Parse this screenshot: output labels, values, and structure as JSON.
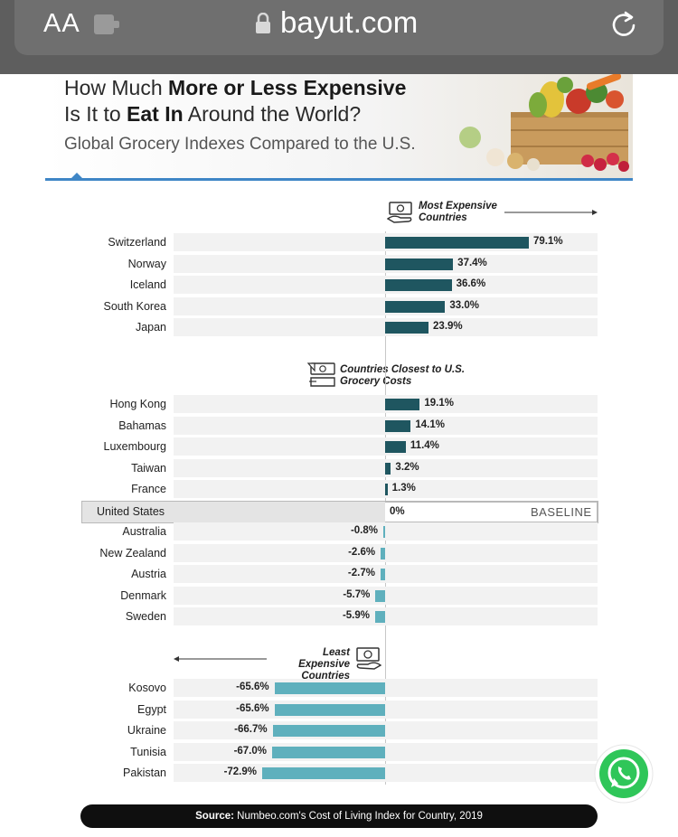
{
  "browser": {
    "text_size_button": "AA",
    "url": "bayut.com"
  },
  "header": {
    "title_line1_pre": "How Much ",
    "title_line1_bold": "More or Less Expensive",
    "title_line2_pre": "Is It to ",
    "title_line2_bold": "Eat In",
    "title_line2_post": " Around the World?",
    "subtitle": "Global Grocery Indexes Compared to the U.S."
  },
  "sections": {
    "most_expensive_line1": "Most Expensive",
    "most_expensive_line2": "Countries",
    "closest_line1": "Countries Closest to U.S.",
    "closest_line2": "Grocery Costs",
    "least_expensive_line1": "Least Expensive",
    "least_expensive_line2": "Countries"
  },
  "baseline": {
    "country": "United States",
    "value": "0%",
    "tag": "BASELINE"
  },
  "source": {
    "label": "Source:",
    "text": " Numbeo.com's Cost of Living Index for Country, 2019"
  },
  "colors": {
    "positive_bar": "#1f5660",
    "negative_bar": "#5fb0bd",
    "accent": "#3f86c6"
  },
  "chart_data": {
    "type": "bar",
    "title": "How Much More or Less Expensive Is It to Eat In Around the World?",
    "subtitle": "Global Grocery Indexes Compared to the U.S.",
    "unit": "%",
    "groups": [
      {
        "name": "Most Expensive Countries",
        "categories": [
          "Switzerland",
          "Norway",
          "Iceland",
          "South Korea",
          "Japan"
        ],
        "values": [
          79.1,
          37.4,
          36.6,
          33.0,
          23.9
        ],
        "labels": [
          "79.1%",
          "37.4%",
          "36.6%",
          "33.0%",
          "23.9%"
        ]
      },
      {
        "name": "Countries Closest to U.S. Grocery Costs (above)",
        "categories": [
          "Hong Kong",
          "Bahamas",
          "Luxembourg",
          "Taiwan",
          "France"
        ],
        "values": [
          19.1,
          14.1,
          11.4,
          3.2,
          1.3
        ],
        "labels": [
          "19.1%",
          "14.1%",
          "11.4%",
          "3.2%",
          "1.3%"
        ]
      },
      {
        "name": "Countries Closest to U.S. Grocery Costs (below)",
        "categories": [
          "Australia",
          "New Zealand",
          "Austria",
          "Denmark",
          "Sweden"
        ],
        "values": [
          -0.8,
          -2.6,
          -2.7,
          -5.7,
          -5.9
        ],
        "labels": [
          "-0.8%",
          "-2.6%",
          "-2.7%",
          "-5.7%",
          "-5.9%"
        ]
      },
      {
        "name": "Least Expensive Countries",
        "categories": [
          "Kosovo",
          "Egypt",
          "Ukraine",
          "Tunisia",
          "Pakistan"
        ],
        "values": [
          -65.6,
          -65.6,
          -66.7,
          -67.0,
          -72.9
        ],
        "labels": [
          "-65.6%",
          "-65.6%",
          "-66.7%",
          "-67.0%",
          "-72.9%"
        ]
      }
    ],
    "baseline": {
      "category": "United States",
      "value": 0
    }
  }
}
